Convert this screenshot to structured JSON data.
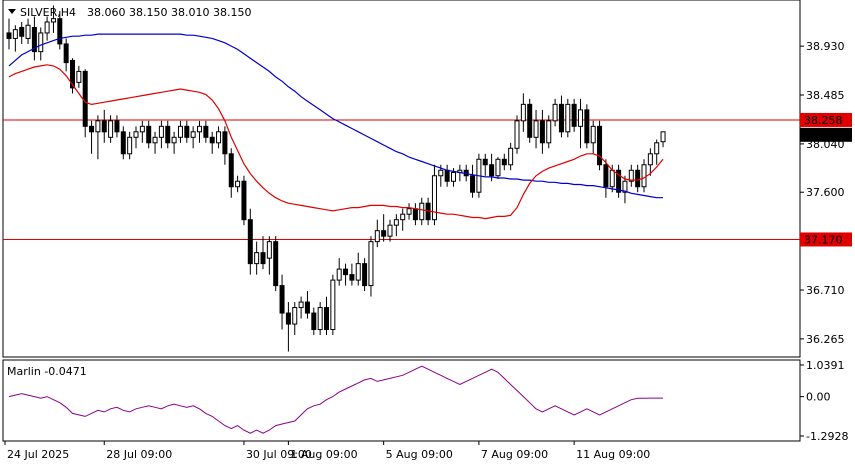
{
  "window": {
    "symbol_label": "SILVER,H4",
    "ohlc_label": "38.060 38.150 38.010 38.150"
  },
  "colors": {
    "background": "#ffffff",
    "panel_border": "#000000",
    "candle": "#000000",
    "ma_fast": "#e00000",
    "ma_slow": "#0000cc",
    "hline": "#e00000",
    "marlin": "#8b008b",
    "bid_label": "#000000"
  },
  "chart_data": [
    {
      "type": "candlestick",
      "title": "SILVER,H4",
      "subtitle": "38.060 38.150 38.010 38.150",
      "ylim": [
        36.1,
        39.35
      ],
      "y_ticks": [
        "38.930",
        "38.485",
        "38.040",
        "37.600",
        "36.710",
        "36.265"
      ],
      "x_ticks": [
        "24 Jul 2025",
        "28 Jul 09:00",
        "30 Jul 09:00",
        "1 Aug 09:00",
        "5 Aug 09:00",
        "7 Aug 09:00",
        "11 Aug 09:00"
      ],
      "horizontal_lines": [
        {
          "value": 38.258,
          "label": "38.258"
        },
        {
          "value": 37.17,
          "label": "37.170"
        }
      ],
      "current_price": {
        "value": 38.15,
        "label": "38.150"
      },
      "candles": [
        [
          39.05,
          39.18,
          38.9,
          39.0
        ],
        [
          39.0,
          39.12,
          38.88,
          39.08
        ],
        [
          39.1,
          39.15,
          38.95,
          39.02
        ],
        [
          39.0,
          39.18,
          38.95,
          39.12
        ],
        [
          39.1,
          39.2,
          38.8,
          38.88
        ],
        [
          38.88,
          39.1,
          38.8,
          39.05
        ],
        [
          39.05,
          39.2,
          38.98,
          39.15
        ],
        [
          39.15,
          39.3,
          39.05,
          39.18
        ],
        [
          39.18,
          39.25,
          38.9,
          38.95
        ],
        [
          38.95,
          39.0,
          38.7,
          38.78
        ],
        [
          38.8,
          38.82,
          38.5,
          38.55
        ],
        [
          38.6,
          38.75,
          38.55,
          38.7
        ],
        [
          38.7,
          38.72,
          38.1,
          38.2
        ],
        [
          38.2,
          38.25,
          37.95,
          38.15
        ],
        [
          38.15,
          38.3,
          37.9,
          38.25
        ],
        [
          38.25,
          38.35,
          38.05,
          38.15
        ],
        [
          38.1,
          38.3,
          38.05,
          38.25
        ],
        [
          38.25,
          38.3,
          38.1,
          38.15
        ],
        [
          38.15,
          38.2,
          37.9,
          37.95
        ],
        [
          37.95,
          38.15,
          37.9,
          38.1
        ],
        [
          38.1,
          38.2,
          38.0,
          38.15
        ],
        [
          38.15,
          38.25,
          38.05,
          38.2
        ],
        [
          38.2,
          38.25,
          38.0,
          38.05
        ],
        [
          38.05,
          38.15,
          37.95,
          38.1
        ],
        [
          38.1,
          38.25,
          38.0,
          38.2
        ],
        [
          38.2,
          38.25,
          38.0,
          38.05
        ],
        [
          38.05,
          38.15,
          37.95,
          38.1
        ],
        [
          38.1,
          38.25,
          38.05,
          38.2
        ],
        [
          38.2,
          38.25,
          38.05,
          38.1
        ],
        [
          38.1,
          38.2,
          38.0,
          38.15
        ],
        [
          38.15,
          38.25,
          38.05,
          38.2
        ],
        [
          38.2,
          38.25,
          38.05,
          38.1
        ],
        [
          38.1,
          38.15,
          37.95,
          38.05
        ],
        [
          38.05,
          38.2,
          38.0,
          38.15
        ],
        [
          38.15,
          38.2,
          37.85,
          37.95
        ],
        [
          37.95,
          38.0,
          37.55,
          37.65
        ],
        [
          37.65,
          37.75,
          37.6,
          37.7
        ],
        [
          37.7,
          37.75,
          37.3,
          37.35
        ],
        [
          37.35,
          37.45,
          36.85,
          36.95
        ],
        [
          36.95,
          37.15,
          36.85,
          37.05
        ],
        [
          37.05,
          37.2,
          36.9,
          36.95
        ],
        [
          37.0,
          37.2,
          36.85,
          37.15
        ],
        [
          37.15,
          37.2,
          36.7,
          36.75
        ],
        [
          36.75,
          36.85,
          36.35,
          36.5
        ],
        [
          36.5,
          36.6,
          36.15,
          36.4
        ],
        [
          36.4,
          36.6,
          36.3,
          36.55
        ],
        [
          36.55,
          36.65,
          36.45,
          36.6
        ],
        [
          36.6,
          36.7,
          36.45,
          36.5
        ],
        [
          36.5,
          36.55,
          36.3,
          36.35
        ],
        [
          36.35,
          36.6,
          36.3,
          36.55
        ],
        [
          36.55,
          36.65,
          36.3,
          36.35
        ],
        [
          36.35,
          36.85,
          36.3,
          36.8
        ],
        [
          36.8,
          37.0,
          36.75,
          36.9
        ],
        [
          36.9,
          36.95,
          36.75,
          36.85
        ],
        [
          36.85,
          36.95,
          36.75,
          36.8
        ],
        [
          36.8,
          37.05,
          36.75,
          36.95
        ],
        [
          36.95,
          37.0,
          36.7,
          36.75
        ],
        [
          36.75,
          37.2,
          36.65,
          37.15
        ],
        [
          37.15,
          37.35,
          37.1,
          37.25
        ],
        [
          37.25,
          37.4,
          37.15,
          37.2
        ],
        [
          37.2,
          37.35,
          37.15,
          37.3
        ],
        [
          37.3,
          37.4,
          37.2,
          37.35
        ],
        [
          37.35,
          37.45,
          37.25,
          37.4
        ],
        [
          37.4,
          37.5,
          37.35,
          37.45
        ],
        [
          37.45,
          37.5,
          37.3,
          37.35
        ],
        [
          37.35,
          37.55,
          37.3,
          37.5
        ],
        [
          37.5,
          37.55,
          37.3,
          37.35
        ],
        [
          37.35,
          37.85,
          37.3,
          37.75
        ],
        [
          37.75,
          37.85,
          37.65,
          37.8
        ],
        [
          37.8,
          37.85,
          37.65,
          37.7
        ],
        [
          37.7,
          37.82,
          37.65,
          37.78
        ],
        [
          37.78,
          37.85,
          37.7,
          37.8
        ],
        [
          37.8,
          37.85,
          37.7,
          37.75
        ],
        [
          37.75,
          37.85,
          37.55,
          37.6
        ],
        [
          37.6,
          37.95,
          37.55,
          37.9
        ],
        [
          37.9,
          37.95,
          37.75,
          37.85
        ],
        [
          37.85,
          37.95,
          37.7,
          37.75
        ],
        [
          37.75,
          37.92,
          37.72,
          37.9
        ],
        [
          37.9,
          37.95,
          37.8,
          37.85
        ],
        [
          37.85,
          38.05,
          37.8,
          38.0
        ],
        [
          38.0,
          38.3,
          37.95,
          38.25
        ],
        [
          38.25,
          38.5,
          38.15,
          38.4
        ],
        [
          38.4,
          38.45,
          38.05,
          38.1
        ],
        [
          38.1,
          38.35,
          38.0,
          38.25
        ],
        [
          38.25,
          38.35,
          37.95,
          38.05
        ],
        [
          38.05,
          38.3,
          38.0,
          38.25
        ],
        [
          38.25,
          38.45,
          38.2,
          38.4
        ],
        [
          38.4,
          38.48,
          38.1,
          38.15
        ],
        [
          38.15,
          38.45,
          38.1,
          38.4
        ],
        [
          38.4,
          38.45,
          38.15,
          38.2
        ],
        [
          38.2,
          38.45,
          38.0,
          38.35
        ],
        [
          38.35,
          38.4,
          38.0,
          38.05
        ],
        [
          38.05,
          38.25,
          37.95,
          38.2
        ],
        [
          38.2,
          38.25,
          37.8,
          37.85
        ],
        [
          37.85,
          37.9,
          37.55,
          37.65
        ],
        [
          37.65,
          37.85,
          37.6,
          37.8
        ],
        [
          37.8,
          37.85,
          37.55,
          37.6
        ],
        [
          37.6,
          37.75,
          37.5,
          37.7
        ],
        [
          37.7,
          37.85,
          37.65,
          37.8
        ],
        [
          37.8,
          37.85,
          37.6,
          37.65
        ],
        [
          37.65,
          37.9,
          37.6,
          37.85
        ],
        [
          37.85,
          38.0,
          37.75,
          37.95
        ],
        [
          37.95,
          38.08,
          37.85,
          38.05
        ],
        [
          38.06,
          38.15,
          38.01,
          38.15
        ]
      ],
      "ma_fast": [
        38.65,
        38.68,
        38.7,
        38.72,
        38.74,
        38.75,
        38.76,
        38.75,
        38.72,
        38.66,
        38.58,
        38.5,
        38.42,
        38.4,
        38.41,
        38.42,
        38.43,
        38.44,
        38.45,
        38.46,
        38.47,
        38.48,
        38.49,
        38.5,
        38.51,
        38.52,
        38.53,
        38.54,
        38.53,
        38.52,
        38.51,
        38.49,
        38.44,
        38.36,
        38.25,
        38.1,
        37.98,
        37.86,
        37.77,
        37.7,
        37.64,
        37.59,
        37.55,
        37.52,
        37.5,
        37.49,
        37.48,
        37.47,
        37.46,
        37.45,
        37.44,
        37.43,
        37.44,
        37.45,
        37.46,
        37.46,
        37.47,
        37.48,
        37.48,
        37.48,
        37.47,
        37.47,
        37.46,
        37.46,
        37.45,
        37.44,
        37.43,
        37.42,
        37.41,
        37.4,
        37.4,
        37.39,
        37.38,
        37.37,
        37.37,
        37.36,
        37.37,
        37.38,
        37.38,
        37.39,
        37.46,
        37.58,
        37.68,
        37.75,
        37.79,
        37.82,
        37.84,
        37.86,
        37.88,
        37.9,
        37.93,
        37.95,
        37.95,
        37.93,
        37.87,
        37.8,
        37.76,
        37.72,
        37.71,
        37.71,
        37.73,
        37.77,
        37.83,
        37.9
      ],
      "ma_slow": [
        38.75,
        38.8,
        38.85,
        38.88,
        38.91,
        38.94,
        38.96,
        38.98,
        39.0,
        39.01,
        39.02,
        39.02,
        39.03,
        39.03,
        39.04,
        39.04,
        39.04,
        39.04,
        39.04,
        39.04,
        39.04,
        39.04,
        39.04,
        39.04,
        39.04,
        39.04,
        39.04,
        39.04,
        39.03,
        39.03,
        39.02,
        39.01,
        39.0,
        38.98,
        38.96,
        38.93,
        38.9,
        38.86,
        38.82,
        38.78,
        38.74,
        38.7,
        38.65,
        38.61,
        38.56,
        38.52,
        38.47,
        38.43,
        38.39,
        38.35,
        38.31,
        38.27,
        38.24,
        38.21,
        38.18,
        38.15,
        38.12,
        38.09,
        38.06,
        38.03,
        38.0,
        37.97,
        37.95,
        37.92,
        37.9,
        37.88,
        37.86,
        37.84,
        37.82,
        37.8,
        37.79,
        37.78,
        37.77,
        37.76,
        37.75,
        37.74,
        37.74,
        37.73,
        37.73,
        37.72,
        37.72,
        37.71,
        37.71,
        37.7,
        37.7,
        37.69,
        37.69,
        37.68,
        37.68,
        37.67,
        37.67,
        37.66,
        37.66,
        37.65,
        37.64,
        37.63,
        37.62,
        37.61,
        37.59,
        37.58,
        37.57,
        37.56,
        37.55,
        37.55
      ]
    },
    {
      "type": "line",
      "title": "Marlin -0.0471",
      "ylim": [
        -1.2928,
        1.0391
      ],
      "y_ticks": [
        "1.0391",
        "0.00",
        "-1.2928"
      ],
      "series": [
        {
          "name": "Marlin",
          "values": [
            0.0,
            0.05,
            0.1,
            0.05,
            0.0,
            -0.05,
            0.0,
            -0.1,
            -0.2,
            -0.35,
            -0.55,
            -0.6,
            -0.65,
            -0.55,
            -0.45,
            -0.5,
            -0.4,
            -0.35,
            -0.45,
            -0.5,
            -0.4,
            -0.35,
            -0.3,
            -0.35,
            -0.4,
            -0.3,
            -0.25,
            -0.3,
            -0.35,
            -0.3,
            -0.4,
            -0.55,
            -0.65,
            -0.8,
            -0.95,
            -1.05,
            -0.95,
            -1.1,
            -1.2,
            -1.1,
            -1.2,
            -1.1,
            -0.95,
            -0.9,
            -0.85,
            -0.8,
            -0.6,
            -0.4,
            -0.3,
            -0.25,
            -0.1,
            0.0,
            0.15,
            0.25,
            0.35,
            0.45,
            0.55,
            0.6,
            0.5,
            0.55,
            0.6,
            0.65,
            0.7,
            0.8,
            0.9,
            1.0,
            0.9,
            0.8,
            0.7,
            0.6,
            0.5,
            0.4,
            0.5,
            0.6,
            0.7,
            0.8,
            0.9,
            0.8,
            0.6,
            0.4,
            0.2,
            0.0,
            -0.2,
            -0.4,
            -0.5,
            -0.4,
            -0.3,
            -0.4,
            -0.5,
            -0.6,
            -0.5,
            -0.4,
            -0.5,
            -0.6,
            -0.5,
            -0.4,
            -0.3,
            -0.2,
            -0.1,
            -0.05,
            -0.05,
            -0.0471,
            -0.0471,
            -0.0471
          ]
        }
      ]
    }
  ]
}
